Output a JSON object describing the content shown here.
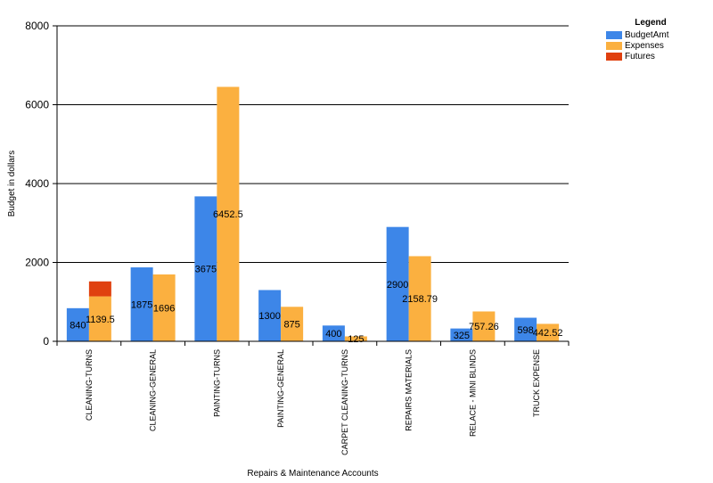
{
  "chart_data": {
    "type": "bar",
    "categories": [
      "CLEANING-TURNS",
      "CLEANING-GENERAL",
      "PAINTING-TURNS",
      "PAINTING-GENERAL",
      "CARPET CLEANING-TURNS",
      "REPAIRS MATERIALS",
      "RELACE - MINI BLINDS",
      "TRUCK EXPENSE"
    ],
    "stacked_groups": [
      [
        "BudgetAmt"
      ],
      [
        "Expenses",
        "Futures"
      ]
    ],
    "series": [
      {
        "name": "BudgetAmt",
        "color": "#3d86e8",
        "values": [
          840,
          1875,
          3675,
          1300,
          400,
          2900,
          325,
          598
        ],
        "labels": [
          "840",
          "1875",
          "3675",
          "1300",
          "400",
          "2900",
          "325",
          "598"
        ]
      },
      {
        "name": "Expenses",
        "color": "#fbb040",
        "values": [
          1139.5,
          1696,
          6452.5,
          875,
          125,
          2158.79,
          757.26,
          442.52
        ],
        "labels": [
          "1139.5",
          "1696",
          "6452.5",
          "875",
          "125",
          "2158.79",
          "757.26",
          "442.52"
        ]
      },
      {
        "name": "Futures",
        "color": "#e0400f",
        "values": [
          380,
          0,
          0,
          0,
          0,
          0,
          0,
          0
        ],
        "labels": [
          "",
          "",
          "",
          "",
          "",
          "",
          "",
          ""
        ]
      }
    ],
    "ylim": [
      0,
      8000
    ],
    "yticks": [
      "0",
      "2000",
      "4000",
      "6000",
      "8000"
    ],
    "ylabel": "Budget in dollars",
    "xlabel": "Repairs & Maintenance Accounts",
    "grid": true,
    "legend": {
      "title": "Legend",
      "position": "top-right"
    }
  }
}
